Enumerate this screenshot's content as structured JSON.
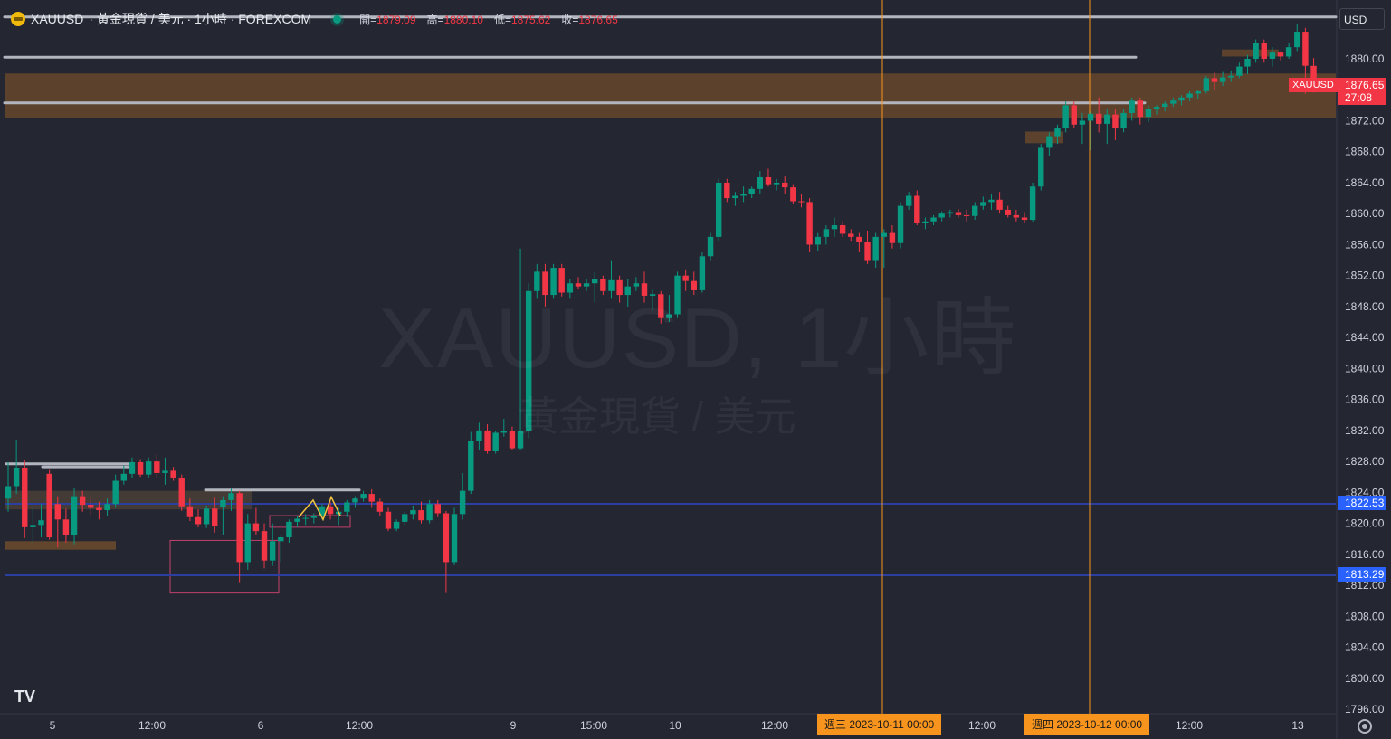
{
  "header": {
    "symbol": "XAUUSD",
    "title_rest": "· 黃金現貨 / 美元 · 1小時 · FOREXCOM",
    "ohlc": {
      "open_label": "開=",
      "open": "1879.09",
      "high_label": "高=",
      "high": "1880.10",
      "low_label": "低=",
      "low": "1875.62",
      "close_label": "收=",
      "close": "1876.65"
    }
  },
  "watermark": {
    "main": "XAUUSD, 1小時",
    "sub": "黃金現貨 / 美元"
  },
  "currency": "USD",
  "price_scale": {
    "ticks": [
      "1880.00",
      "1876.00",
      "1872.00",
      "1868.00",
      "1864.00",
      "1860.00",
      "1856.00",
      "1852.00",
      "1848.00",
      "1844.00",
      "1840.00",
      "1836.00",
      "1832.00",
      "1828.00",
      "1824.00",
      "1820.00",
      "1816.00",
      "1812.00",
      "1808.00",
      "1804.00",
      "1800.00",
      "1796.00"
    ],
    "current_price": "1876.65",
    "countdown": "27:08",
    "line1": "1822.53",
    "line2": "1813.29",
    "symbol_tag": "XAUUSD"
  },
  "time_axis": {
    "labels": [
      "5",
      "12:00",
      "6",
      "12:00",
      "9",
      "15:00",
      "10",
      "12:00",
      "12:00",
      "12:00",
      "13"
    ],
    "highlight1": "週三 2023-10-11   00:00",
    "highlight2": "週四 2023-10-12   00:00"
  },
  "colors": {
    "up": "#089981",
    "down": "#f23645",
    "background": "#242732",
    "marker": "#f7941d",
    "zone": "#8a5a2a",
    "horizontal": "#2a3fa0"
  },
  "logo": "TV",
  "chart_data": {
    "type": "candlestick",
    "symbol": "XAUUSD",
    "interval": "1小時",
    "ylim": [
      1794,
      1883
    ],
    "candles": [
      {
        "o": 1823.2,
        "h": 1827.9,
        "l": 1821.5,
        "c": 1824.8
      },
      {
        "o": 1824.8,
        "h": 1830.8,
        "l": 1823.8,
        "c": 1827.2
      },
      {
        "o": 1827.2,
        "h": 1828.2,
        "l": 1818.1,
        "c": 1819.5
      },
      {
        "o": 1819.5,
        "h": 1822.3,
        "l": 1817.3,
        "c": 1819.8
      },
      {
        "o": 1819.8,
        "h": 1822.5,
        "l": 1818.2,
        "c": 1820.4
      },
      {
        "o": 1826.4,
        "h": 1826.9,
        "l": 1817.9,
        "c": 1818.2
      },
      {
        "o": 1822.5,
        "h": 1823.5,
        "l": 1816.9,
        "c": 1820.5
      },
      {
        "o": 1820.5,
        "h": 1821.9,
        "l": 1817.5,
        "c": 1818.5
      },
      {
        "o": 1818.5,
        "h": 1824.5,
        "l": 1817.3,
        "c": 1823.5
      },
      {
        "o": 1823.5,
        "h": 1824.2,
        "l": 1821.5,
        "c": 1822.4
      },
      {
        "o": 1822.4,
        "h": 1823.3,
        "l": 1821.1,
        "c": 1822.0
      },
      {
        "o": 1822.0,
        "h": 1822.8,
        "l": 1820.5,
        "c": 1821.7
      },
      {
        "o": 1821.7,
        "h": 1823.2,
        "l": 1821.0,
        "c": 1822.5
      },
      {
        "o": 1822.5,
        "h": 1826.3,
        "l": 1822.0,
        "c": 1825.5
      },
      {
        "o": 1825.5,
        "h": 1827.5,
        "l": 1825.0,
        "c": 1826.4
      },
      {
        "o": 1826.4,
        "h": 1828.5,
        "l": 1825.8,
        "c": 1827.9
      },
      {
        "o": 1827.9,
        "h": 1828.3,
        "l": 1826.0,
        "c": 1826.3
      },
      {
        "o": 1826.3,
        "h": 1828.5,
        "l": 1825.9,
        "c": 1828.0
      },
      {
        "o": 1828.0,
        "h": 1828.9,
        "l": 1825.9,
        "c": 1826.5
      },
      {
        "o": 1826.5,
        "h": 1828.5,
        "l": 1825.0,
        "c": 1826.8
      },
      {
        "o": 1826.8,
        "h": 1827.3,
        "l": 1825.5,
        "c": 1825.9
      },
      {
        "o": 1825.9,
        "h": 1826.3,
        "l": 1821.6,
        "c": 1822.2
      },
      {
        "o": 1822.2,
        "h": 1823.2,
        "l": 1820.3,
        "c": 1820.8
      },
      {
        "o": 1820.8,
        "h": 1821.8,
        "l": 1819.5,
        "c": 1819.9
      },
      {
        "o": 1819.9,
        "h": 1822.3,
        "l": 1819.4,
        "c": 1821.9
      },
      {
        "o": 1821.9,
        "h": 1823.3,
        "l": 1818.8,
        "c": 1819.6
      },
      {
        "o": 1822.1,
        "h": 1823.5,
        "l": 1818.5,
        "c": 1823.0
      },
      {
        "o": 1823.0,
        "h": 1824.5,
        "l": 1821.6,
        "c": 1823.9
      },
      {
        "o": 1823.9,
        "h": 1824.2,
        "l": 1812.4,
        "c": 1815.0
      },
      {
        "o": 1815.0,
        "h": 1821.2,
        "l": 1814.0,
        "c": 1820.0
      },
      {
        "o": 1820.0,
        "h": 1822.0,
        "l": 1818.5,
        "c": 1819.0
      },
      {
        "o": 1819.0,
        "h": 1820.0,
        "l": 1814.2,
        "c": 1815.2
      },
      {
        "o": 1815.2,
        "h": 1820.0,
        "l": 1814.5,
        "c": 1817.7
      },
      {
        "o": 1817.7,
        "h": 1818.5,
        "l": 1815.0,
        "c": 1818.2
      },
      {
        "o": 1818.2,
        "h": 1820.5,
        "l": 1817.5,
        "c": 1820.2
      },
      {
        "o": 1820.2,
        "h": 1821.0,
        "l": 1819.5,
        "c": 1820.6
      },
      {
        "o": 1820.6,
        "h": 1821.2,
        "l": 1819.8,
        "c": 1820.7
      },
      {
        "o": 1820.7,
        "h": 1821.3,
        "l": 1820.0,
        "c": 1821.0
      },
      {
        "o": 1821.0,
        "h": 1822.5,
        "l": 1820.5,
        "c": 1822.2
      },
      {
        "o": 1822.2,
        "h": 1822.8,
        "l": 1820.5,
        "c": 1821.2
      },
      {
        "o": 1821.2,
        "h": 1822.0,
        "l": 1819.8,
        "c": 1821.5
      },
      {
        "o": 1821.5,
        "h": 1823.0,
        "l": 1820.8,
        "c": 1822.7
      },
      {
        "o": 1822.7,
        "h": 1823.5,
        "l": 1822.0,
        "c": 1823.2
      },
      {
        "o": 1823.2,
        "h": 1824.2,
        "l": 1822.8,
        "c": 1823.8
      },
      {
        "o": 1823.8,
        "h": 1824.4,
        "l": 1822.0,
        "c": 1822.8
      },
      {
        "o": 1822.8,
        "h": 1823.2,
        "l": 1821.0,
        "c": 1821.5
      },
      {
        "o": 1821.5,
        "h": 1822.0,
        "l": 1819.0,
        "c": 1819.3
      },
      {
        "o": 1819.3,
        "h": 1820.5,
        "l": 1819.0,
        "c": 1820.2
      },
      {
        "o": 1820.2,
        "h": 1821.5,
        "l": 1819.8,
        "c": 1821.2
      },
      {
        "o": 1821.2,
        "h": 1822.3,
        "l": 1820.5,
        "c": 1821.7
      },
      {
        "o": 1821.7,
        "h": 1822.8,
        "l": 1820.0,
        "c": 1820.4
      },
      {
        "o": 1820.4,
        "h": 1823.0,
        "l": 1820.0,
        "c": 1822.5
      },
      {
        "o": 1822.5,
        "h": 1823.0,
        "l": 1820.8,
        "c": 1821.3
      },
      {
        "o": 1821.3,
        "h": 1821.6,
        "l": 1811.0,
        "c": 1815.0
      },
      {
        "o": 1815.0,
        "h": 1822.0,
        "l": 1814.6,
        "c": 1821.2
      },
      {
        "o": 1821.2,
        "h": 1826.5,
        "l": 1820.5,
        "c": 1824.2
      },
      {
        "o": 1824.2,
        "h": 1831.8,
        "l": 1823.8,
        "c": 1830.7
      },
      {
        "o": 1830.7,
        "h": 1833.0,
        "l": 1829.5,
        "c": 1832.0
      },
      {
        "o": 1832.0,
        "h": 1832.8,
        "l": 1829.0,
        "c": 1829.3
      },
      {
        "o": 1829.3,
        "h": 1832.0,
        "l": 1829.0,
        "c": 1831.7
      },
      {
        "o": 1831.7,
        "h": 1833.5,
        "l": 1831.2,
        "c": 1831.9
      },
      {
        "o": 1831.9,
        "h": 1832.5,
        "l": 1829.5,
        "c": 1829.7
      },
      {
        "o": 1829.7,
        "h": 1855.5,
        "l": 1829.5,
        "c": 1831.9
      },
      {
        "o": 1831.9,
        "h": 1851.0,
        "l": 1831.0,
        "c": 1850.0
      },
      {
        "o": 1850.0,
        "h": 1853.5,
        "l": 1849.0,
        "c": 1852.5
      },
      {
        "o": 1852.5,
        "h": 1853.5,
        "l": 1848.0,
        "c": 1849.5
      },
      {
        "o": 1849.5,
        "h": 1853.5,
        "l": 1849.0,
        "c": 1853.0
      },
      {
        "o": 1853.0,
        "h": 1853.5,
        "l": 1849.3,
        "c": 1849.8
      },
      {
        "o": 1849.8,
        "h": 1851.5,
        "l": 1849.0,
        "c": 1851.0
      },
      {
        "o": 1851.0,
        "h": 1851.8,
        "l": 1850.2,
        "c": 1850.6
      },
      {
        "o": 1850.6,
        "h": 1851.5,
        "l": 1850.0,
        "c": 1851.0
      },
      {
        "o": 1851.0,
        "h": 1852.5,
        "l": 1848.5,
        "c": 1851.5
      },
      {
        "o": 1851.5,
        "h": 1852.0,
        "l": 1849.5,
        "c": 1850.0
      },
      {
        "o": 1850.0,
        "h": 1854.0,
        "l": 1849.0,
        "c": 1851.4
      },
      {
        "o": 1851.4,
        "h": 1852.0,
        "l": 1848.5,
        "c": 1849.5
      },
      {
        "o": 1849.5,
        "h": 1851.5,
        "l": 1848.0,
        "c": 1850.6
      },
      {
        "o": 1850.6,
        "h": 1851.8,
        "l": 1850.0,
        "c": 1851.0
      },
      {
        "o": 1851.0,
        "h": 1852.5,
        "l": 1848.5,
        "c": 1849.4
      },
      {
        "o": 1849.4,
        "h": 1850.2,
        "l": 1847.5,
        "c": 1849.6
      },
      {
        "o": 1849.6,
        "h": 1850.0,
        "l": 1845.8,
        "c": 1846.5
      },
      {
        "o": 1846.5,
        "h": 1849.5,
        "l": 1846.0,
        "c": 1847.0
      },
      {
        "o": 1847.0,
        "h": 1852.5,
        "l": 1846.5,
        "c": 1852.0
      },
      {
        "o": 1852.0,
        "h": 1852.8,
        "l": 1850.0,
        "c": 1851.3
      },
      {
        "o": 1851.3,
        "h": 1852.5,
        "l": 1849.5,
        "c": 1850.1
      },
      {
        "o": 1850.1,
        "h": 1855.0,
        "l": 1849.8,
        "c": 1854.5
      },
      {
        "o": 1854.5,
        "h": 1857.5,
        "l": 1854.0,
        "c": 1857.0
      },
      {
        "o": 1857.0,
        "h": 1864.5,
        "l": 1856.5,
        "c": 1864.0
      },
      {
        "o": 1864.0,
        "h": 1864.5,
        "l": 1861.5,
        "c": 1862.0
      },
      {
        "o": 1862.0,
        "h": 1862.8,
        "l": 1861.0,
        "c": 1862.3
      },
      {
        "o": 1862.3,
        "h": 1863.5,
        "l": 1861.5,
        "c": 1862.5
      },
      {
        "o": 1862.5,
        "h": 1863.5,
        "l": 1862.0,
        "c": 1863.2
      },
      {
        "o": 1863.2,
        "h": 1865.5,
        "l": 1862.5,
        "c": 1864.7
      },
      {
        "o": 1864.7,
        "h": 1865.8,
        "l": 1863.5,
        "c": 1863.8
      },
      {
        "o": 1863.8,
        "h": 1864.5,
        "l": 1863.0,
        "c": 1864.0
      },
      {
        "o": 1864.0,
        "h": 1864.8,
        "l": 1862.5,
        "c": 1863.4
      },
      {
        "o": 1863.4,
        "h": 1863.8,
        "l": 1861.2,
        "c": 1861.6
      },
      {
        "o": 1861.6,
        "h": 1862.5,
        "l": 1860.8,
        "c": 1861.5
      },
      {
        "o": 1861.5,
        "h": 1862.0,
        "l": 1855.0,
        "c": 1856.0
      },
      {
        "o": 1856.0,
        "h": 1857.5,
        "l": 1855.2,
        "c": 1857.0
      },
      {
        "o": 1857.0,
        "h": 1858.5,
        "l": 1856.0,
        "c": 1858.0
      },
      {
        "o": 1858.0,
        "h": 1859.5,
        "l": 1857.0,
        "c": 1858.5
      },
      {
        "o": 1858.5,
        "h": 1859.0,
        "l": 1857.0,
        "c": 1857.4
      },
      {
        "o": 1857.4,
        "h": 1858.0,
        "l": 1856.5,
        "c": 1857.0
      },
      {
        "o": 1857.0,
        "h": 1857.5,
        "l": 1855.0,
        "c": 1856.3
      },
      {
        "o": 1856.3,
        "h": 1857.8,
        "l": 1853.5,
        "c": 1854.0
      },
      {
        "o": 1854.0,
        "h": 1857.5,
        "l": 1853.0,
        "c": 1857.0
      },
      {
        "o": 1857.0,
        "h": 1858.0,
        "l": 1853.0,
        "c": 1857.5
      },
      {
        "o": 1857.5,
        "h": 1858.5,
        "l": 1855.5,
        "c": 1856.2
      },
      {
        "o": 1856.2,
        "h": 1861.5,
        "l": 1855.5,
        "c": 1861.0
      },
      {
        "o": 1861.0,
        "h": 1862.8,
        "l": 1860.5,
        "c": 1862.3
      },
      {
        "o": 1862.3,
        "h": 1863.0,
        "l": 1858.5,
        "c": 1858.8
      },
      {
        "o": 1858.8,
        "h": 1859.5,
        "l": 1858.0,
        "c": 1859.0
      },
      {
        "o": 1859.0,
        "h": 1859.8,
        "l": 1858.5,
        "c": 1859.5
      },
      {
        "o": 1859.5,
        "h": 1860.3,
        "l": 1859.0,
        "c": 1860.0
      },
      {
        "o": 1860.0,
        "h": 1860.5,
        "l": 1859.5,
        "c": 1860.2
      },
      {
        "o": 1860.2,
        "h": 1860.6,
        "l": 1859.5,
        "c": 1859.8
      },
      {
        "o": 1859.8,
        "h": 1860.5,
        "l": 1859.0,
        "c": 1859.7
      },
      {
        "o": 1859.7,
        "h": 1861.5,
        "l": 1859.2,
        "c": 1861.0
      },
      {
        "o": 1861.0,
        "h": 1862.2,
        "l": 1860.5,
        "c": 1861.5
      },
      {
        "o": 1861.5,
        "h": 1862.5,
        "l": 1860.5,
        "c": 1861.8
      },
      {
        "o": 1861.8,
        "h": 1862.8,
        "l": 1860.0,
        "c": 1860.5
      },
      {
        "o": 1860.5,
        "h": 1861.0,
        "l": 1859.5,
        "c": 1859.8
      },
      {
        "o": 1859.8,
        "h": 1860.5,
        "l": 1859.0,
        "c": 1859.5
      },
      {
        "o": 1859.5,
        "h": 1860.2,
        "l": 1858.8,
        "c": 1859.2
      },
      {
        "o": 1859.2,
        "h": 1864.0,
        "l": 1859.0,
        "c": 1863.5
      },
      {
        "o": 1863.5,
        "h": 1869.0,
        "l": 1863.0,
        "c": 1868.5
      },
      {
        "o": 1868.5,
        "h": 1870.5,
        "l": 1867.5,
        "c": 1870.0
      },
      {
        "o": 1870.0,
        "h": 1871.5,
        "l": 1869.0,
        "c": 1871.0
      },
      {
        "o": 1871.0,
        "h": 1874.5,
        "l": 1870.5,
        "c": 1874.0
      },
      {
        "o": 1874.0,
        "h": 1874.5,
        "l": 1871.0,
        "c": 1871.5
      },
      {
        "o": 1871.5,
        "h": 1873.0,
        "l": 1869.0,
        "c": 1872.0
      },
      {
        "o": 1872.0,
        "h": 1873.2,
        "l": 1868.2,
        "c": 1872.9
      },
      {
        "o": 1872.9,
        "h": 1875.0,
        "l": 1870.5,
        "c": 1871.6
      },
      {
        "o": 1871.6,
        "h": 1873.5,
        "l": 1869.0,
        "c": 1872.8
      },
      {
        "o": 1872.8,
        "h": 1873.5,
        "l": 1869.5,
        "c": 1871.0
      },
      {
        "o": 1871.0,
        "h": 1873.5,
        "l": 1870.5,
        "c": 1873.0
      },
      {
        "o": 1873.0,
        "h": 1875.0,
        "l": 1872.0,
        "c": 1874.6
      },
      {
        "o": 1874.6,
        "h": 1875.0,
        "l": 1871.5,
        "c": 1872.5
      },
      {
        "o": 1872.5,
        "h": 1874.0,
        "l": 1871.8,
        "c": 1873.5
      },
      {
        "o": 1873.5,
        "h": 1874.0,
        "l": 1872.8,
        "c": 1873.8
      },
      {
        "o": 1873.8,
        "h": 1874.5,
        "l": 1873.2,
        "c": 1874.2
      },
      {
        "o": 1874.2,
        "h": 1875.0,
        "l": 1873.8,
        "c": 1874.6
      },
      {
        "o": 1874.6,
        "h": 1875.3,
        "l": 1874.0,
        "c": 1875.0
      },
      {
        "o": 1875.0,
        "h": 1875.8,
        "l": 1874.5,
        "c": 1875.5
      },
      {
        "o": 1875.5,
        "h": 1876.0,
        "l": 1874.8,
        "c": 1875.8
      },
      {
        "o": 1875.8,
        "h": 1877.8,
        "l": 1875.5,
        "c": 1877.5
      },
      {
        "o": 1877.5,
        "h": 1878.2,
        "l": 1876.0,
        "c": 1877.0
      },
      {
        "o": 1877.0,
        "h": 1878.3,
        "l": 1876.5,
        "c": 1877.6
      },
      {
        "o": 1877.6,
        "h": 1878.5,
        "l": 1877.0,
        "c": 1877.8
      },
      {
        "o": 1877.8,
        "h": 1879.5,
        "l": 1877.5,
        "c": 1879.0
      },
      {
        "o": 1879.0,
        "h": 1880.5,
        "l": 1878.0,
        "c": 1880.0
      },
      {
        "o": 1880.0,
        "h": 1882.5,
        "l": 1879.5,
        "c": 1882.0
      },
      {
        "o": 1882.0,
        "h": 1882.5,
        "l": 1879.5,
        "c": 1880.0
      },
      {
        "o": 1880.0,
        "h": 1881.5,
        "l": 1879.0,
        "c": 1880.8
      },
      {
        "o": 1880.8,
        "h": 1881.0,
        "l": 1879.8,
        "c": 1880.3
      },
      {
        "o": 1880.3,
        "h": 1882.0,
        "l": 1880.0,
        "c": 1881.5
      },
      {
        "o": 1881.5,
        "h": 1884.5,
        "l": 1881.0,
        "c": 1883.5
      },
      {
        "o": 1883.5,
        "h": 1884.0,
        "l": 1875.5,
        "c": 1879.1
      },
      {
        "o": 1879.09,
        "h": 1880.1,
        "l": 1875.62,
        "c": 1876.65
      }
    ]
  }
}
